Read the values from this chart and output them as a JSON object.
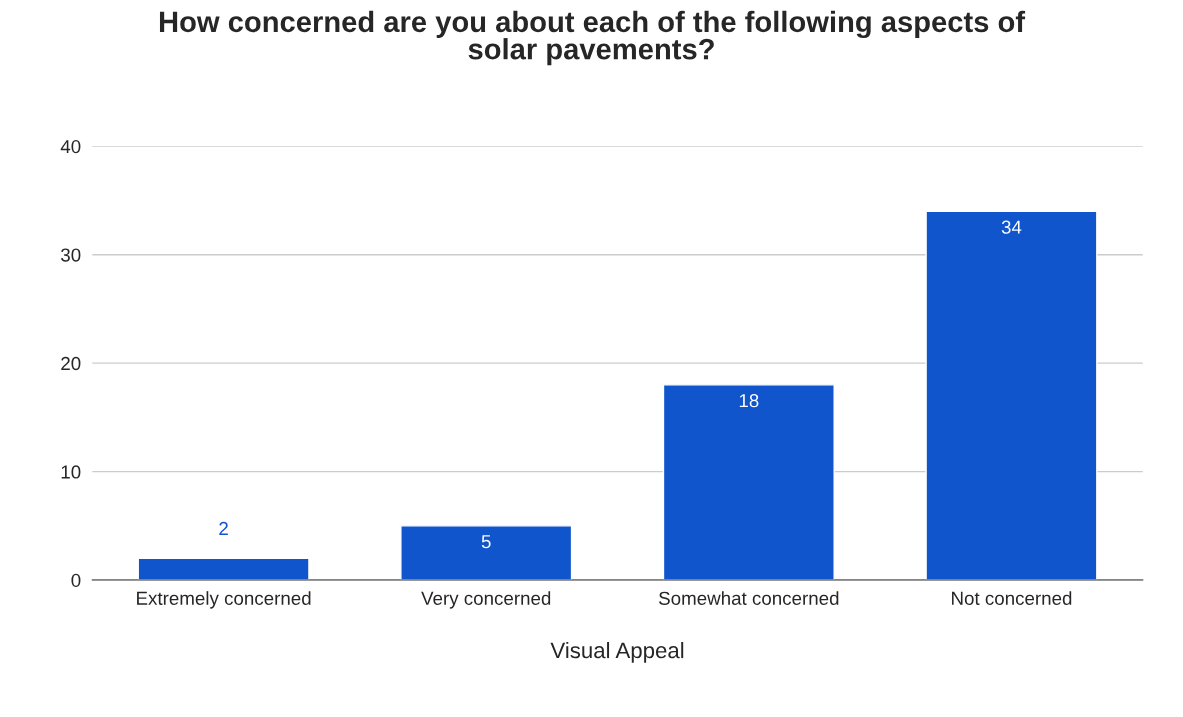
{
  "chart_data": {
    "type": "bar",
    "title": "How concerned are you about each of the following aspects of\nsolar pavements?",
    "xlabel": "Visual Appeal",
    "categories": [
      "Extremely concerned",
      "Very concerned",
      "Somewhat concerned",
      "Not concerned"
    ],
    "values": [
      2,
      5,
      18,
      34
    ],
    "color": "#1155cc",
    "ylim": [
      0,
      40
    ],
    "yticks": [
      0,
      10,
      20,
      30,
      40
    ],
    "grid": "y",
    "data_labels": true,
    "legend": false
  }
}
